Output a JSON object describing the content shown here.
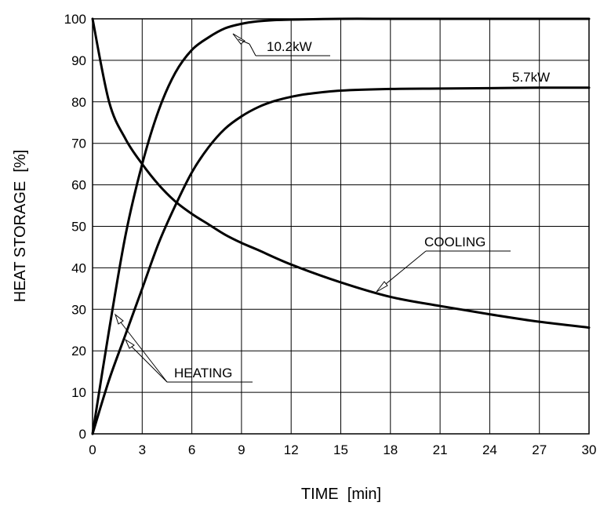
{
  "chart_data": {
    "type": "line",
    "xlabel": "TIME  [min]",
    "ylabel": "HEAT STORAGE  [%]",
    "xlim": [
      0,
      30
    ],
    "ylim": [
      0,
      100
    ],
    "xticks": [
      "0",
      "3",
      "6",
      "9",
      "12",
      "15",
      "18",
      "21",
      "24",
      "27",
      "30"
    ],
    "yticks": [
      "0",
      "10",
      "20",
      "30",
      "40",
      "50",
      "60",
      "70",
      "80",
      "90",
      "100"
    ],
    "grid": true,
    "series": [
      {
        "name": "10.2kW",
        "x": [
          0,
          1,
          2,
          3,
          4,
          5,
          6,
          7,
          8,
          9,
          10,
          11,
          12,
          15,
          18,
          21,
          24,
          27,
          30
        ],
        "y": [
          0,
          25,
          48,
          65,
          78,
          87,
          92.5,
          95.5,
          97.7,
          98.8,
          99.4,
          99.7,
          99.8,
          100,
          100,
          100,
          100,
          100,
          100
        ]
      },
      {
        "name": "5.7kW",
        "x": [
          0,
          1,
          2,
          3,
          4,
          5,
          6,
          7,
          8,
          9,
          10,
          11,
          12,
          13,
          15,
          18,
          21,
          24,
          27,
          30
        ],
        "y": [
          0,
          13,
          24,
          35,
          46,
          55,
          63,
          69,
          73.5,
          76.5,
          78.7,
          80.2,
          81.2,
          81.9,
          82.7,
          83.1,
          83.2,
          83.3,
          83.4,
          83.4
        ]
      },
      {
        "name": "COOLING",
        "x": [
          0,
          1,
          2,
          3,
          4,
          5,
          6,
          7,
          8,
          9,
          10,
          12,
          15,
          18,
          21,
          24,
          27,
          30
        ],
        "y": [
          100,
          80,
          71,
          65,
          60,
          56,
          53,
          50.5,
          48,
          46,
          44.3,
          40.8,
          36.5,
          33,
          30.8,
          28.8,
          27,
          25.6
        ]
      }
    ],
    "annotations": {
      "heating": "HEATING",
      "cooling": "COOLING",
      "p102": "10.2kW",
      "p57": "5.7kW"
    }
  }
}
